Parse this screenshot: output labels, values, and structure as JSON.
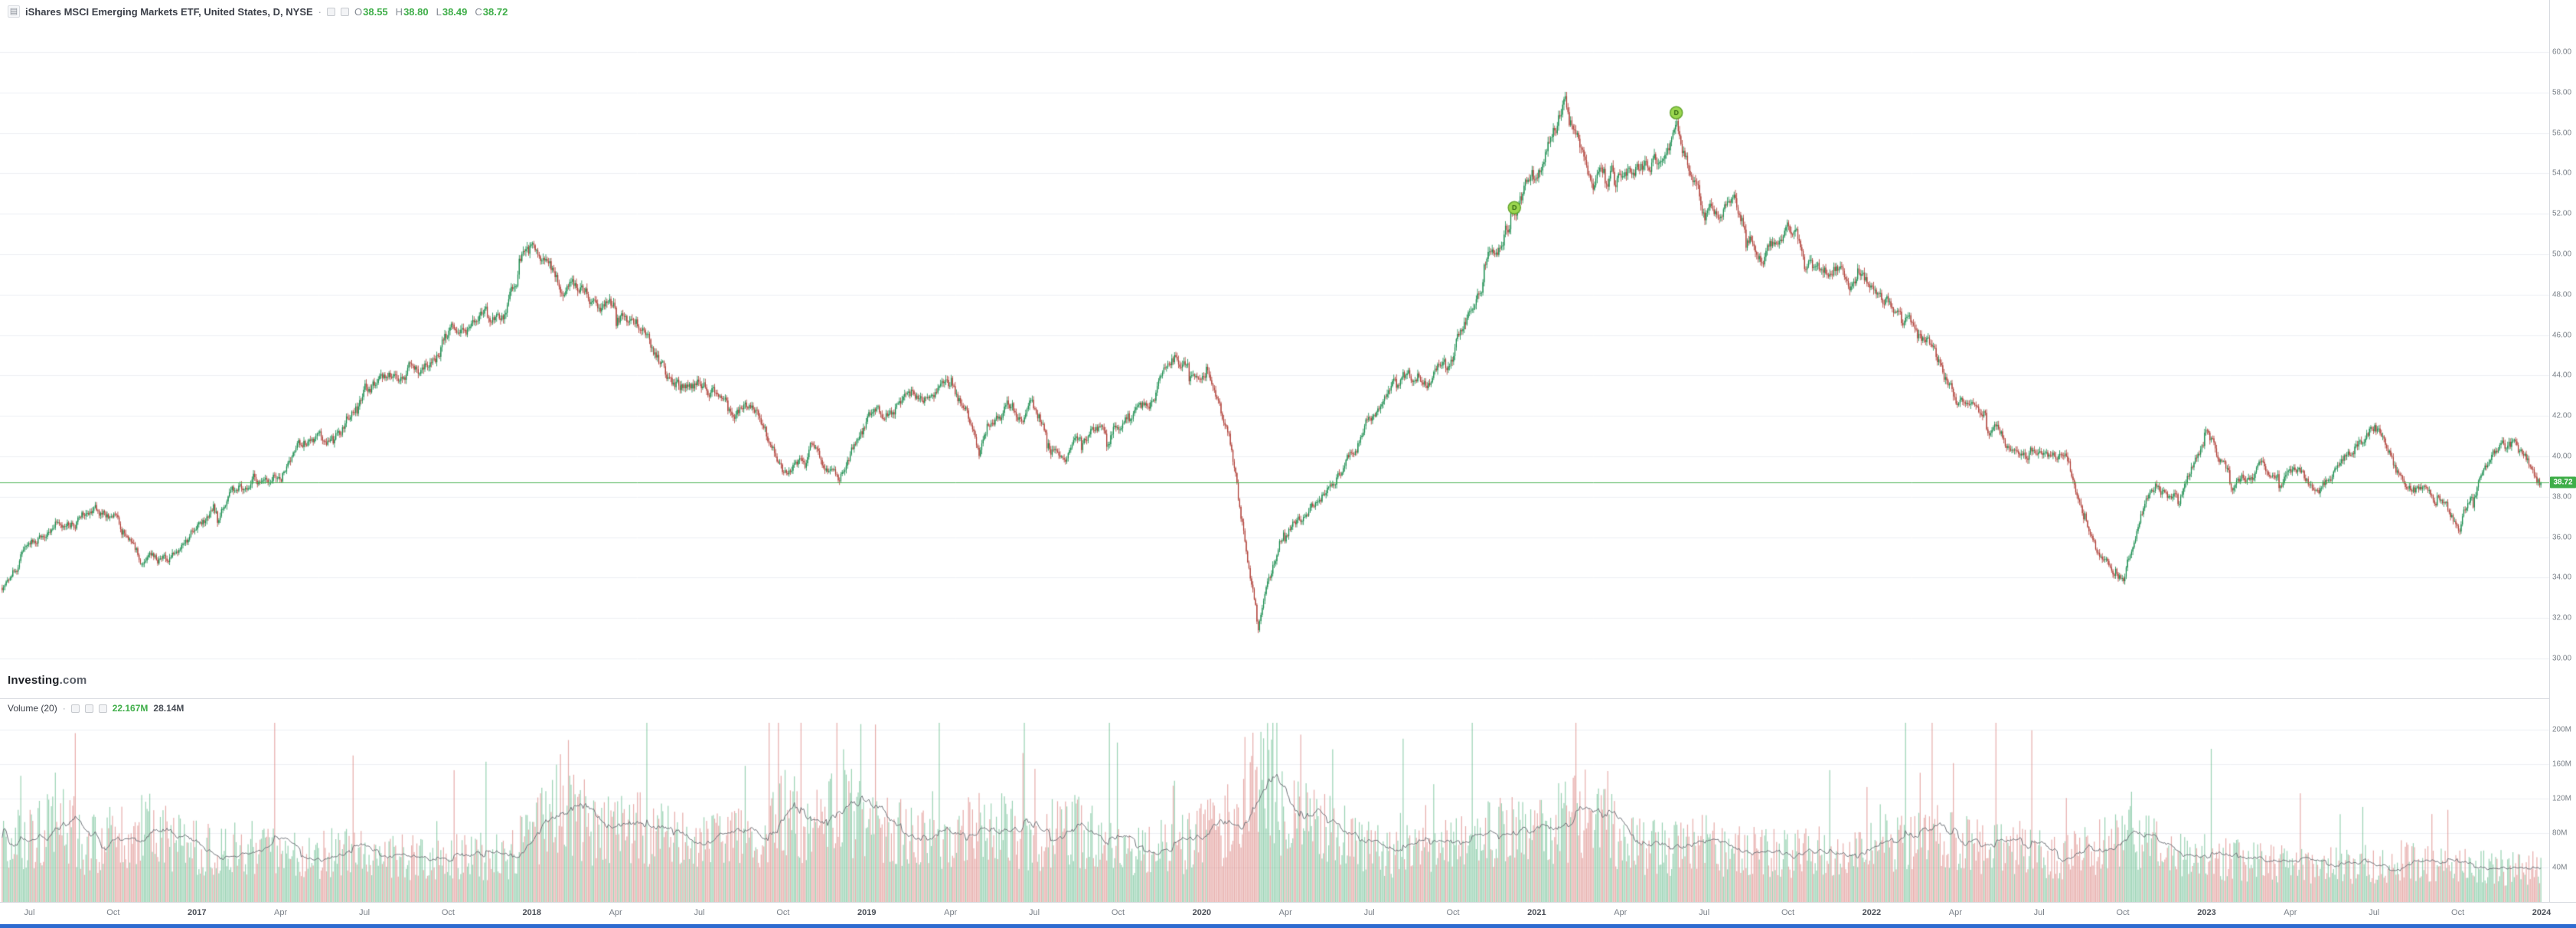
{
  "header": {
    "symbol_title": "iShares MSCI Emerging Markets ETF, United States, D, NYSE",
    "separator": "·",
    "ohlc": [
      {
        "label": "O",
        "value": "38.55"
      },
      {
        "label": "H",
        "value": "38.80"
      },
      {
        "label": "L",
        "value": "38.49"
      },
      {
        "label": "C",
        "value": "38.72"
      }
    ]
  },
  "watermark": {
    "brand": "Investing",
    "suffix": ".com"
  },
  "volume_header": {
    "label": "Volume (20)",
    "separator": "·",
    "current": "22.167M",
    "ma": "28.14M"
  },
  "last_price_label": "38.72",
  "colors": {
    "up": "#138a4a",
    "down": "#ae3a32",
    "up_volume": "rgba(60,170,110,0.5)",
    "down_volume": "rgba(214,110,105,0.55)",
    "price_line": "#3fae49",
    "tag_bg": "#3fae49",
    "volume_ma_line": "#6f7379",
    "grid": "#eef0f3",
    "marker_fill": "#9bd64f",
    "marker_stroke": "#64a52f",
    "marker_glyph": "#2f6312"
  },
  "chart_data": {
    "type": "candlestick+volume",
    "title": "iShares MSCI Emerging Markets ETF",
    "country": "United States",
    "timeframe": "D",
    "exchange": "NYSE",
    "last_close": 38.72,
    "price_axis": {
      "min": 30,
      "max": 60,
      "step": 2
    },
    "volume_axis": {
      "values": [
        200,
        160,
        120,
        80,
        40
      ],
      "labels": [
        "200M",
        "160M",
        "120M",
        "80M",
        "40M"
      ]
    },
    "time_axis": {
      "month_positions": [
        1,
        4,
        7,
        10,
        13,
        16,
        19,
        22,
        25,
        28,
        31,
        34,
        37,
        40,
        43,
        46,
        49,
        52,
        55,
        58,
        61,
        64,
        67,
        70,
        73,
        76,
        79,
        82,
        85,
        88,
        91
      ],
      "labels": [
        "Jul",
        "Oct",
        "2017",
        "Apr",
        "Jul",
        "Oct",
        "2018",
        "Apr",
        "Jul",
        "Oct",
        "2019",
        "Apr",
        "Jul",
        "Oct",
        "2020",
        "Apr",
        "Jul",
        "Oct",
        "2021",
        "Apr",
        "Jul",
        "Oct",
        "2022",
        "Apr",
        "Jul",
        "Oct",
        "2023",
        "Apr",
        "Jul",
        "Oct",
        "2024"
      ]
    },
    "monthly": {
      "start": "2016-06",
      "closes": [
        33.5,
        35.8,
        36.8,
        37.2,
        37.0,
        34.8,
        35.0,
        36.6,
        37.8,
        38.9,
        39.3,
        40.9,
        41.2,
        43.2,
        44.1,
        44.5,
        46.2,
        46.5,
        47.2,
        51.5,
        48.3,
        48.2,
        47.3,
        46.3,
        43.3,
        43.8,
        42.6,
        42.2,
        38.9,
        40.5,
        39.0,
        41.7,
        42.5,
        42.8,
        44.0,
        40.3,
        42.5,
        41.9,
        39.7,
        41.0,
        41.8,
        42.6,
        44.8,
        44.2,
        40.3,
        31.8,
        36.8,
        37.5,
        39.7,
        41.8,
        44.2,
        43.5,
        45.1,
        48.8,
        51.6,
        54.5,
        57.5,
        53.5,
        54.3,
        54.6,
        55.8,
        52.1,
        52.6,
        50.2,
        51.2,
        49.0,
        48.9,
        48.4,
        47.0,
        45.6,
        42.6,
        42.2,
        40.1,
        40.5,
        39.6,
        35.6,
        34.0,
        38.6,
        37.8,
        41.0,
        38.6,
        39.5,
        39.1,
        38.4,
        40.0,
        41.6,
        38.7,
        38.1,
        36.6,
        39.6,
        40.6,
        38.72
      ],
      "volumes_m": [
        75,
        70,
        95,
        60,
        72,
        85,
        65,
        58,
        55,
        60,
        55,
        52,
        55,
        50,
        52,
        50,
        48,
        50,
        48,
        72,
        115,
        85,
        75,
        80,
        78,
        65,
        70,
        68,
        95,
        80,
        95,
        95,
        75,
        70,
        65,
        90,
        75,
        65,
        80,
        70,
        62,
        58,
        60,
        70,
        85,
        150,
        95,
        80,
        75,
        60,
        55,
        58,
        60,
        70,
        75,
        75,
        90,
        95,
        70,
        60,
        58,
        65,
        55,
        60,
        52,
        55,
        50,
        60,
        65,
        75,
        70,
        60,
        62,
        55,
        50,
        60,
        72,
        65,
        50,
        48,
        45,
        42,
        40,
        38,
        40,
        42,
        45,
        40,
        42,
        38,
        36,
        40
      ]
    },
    "volume_spikes": [
      {
        "m": 2.6,
        "v": 196
      },
      {
        "m": 20.3,
        "v": 188
      },
      {
        "m": 31.3,
        "v": 206
      },
      {
        "m": 45.2,
        "v": 190
      },
      {
        "m": 57.5,
        "v": 152
      },
      {
        "m": 68.7,
        "v": 150
      },
      {
        "m": 76.3,
        "v": 128
      }
    ],
    "markers": [
      {
        "month_index": 54.2,
        "price": 52.3,
        "glyph": "D"
      },
      {
        "month_index": 60.0,
        "price": 57.0,
        "glyph": "D"
      }
    ],
    "render": {
      "candles_per_month": 21,
      "seed": 1337
    }
  }
}
